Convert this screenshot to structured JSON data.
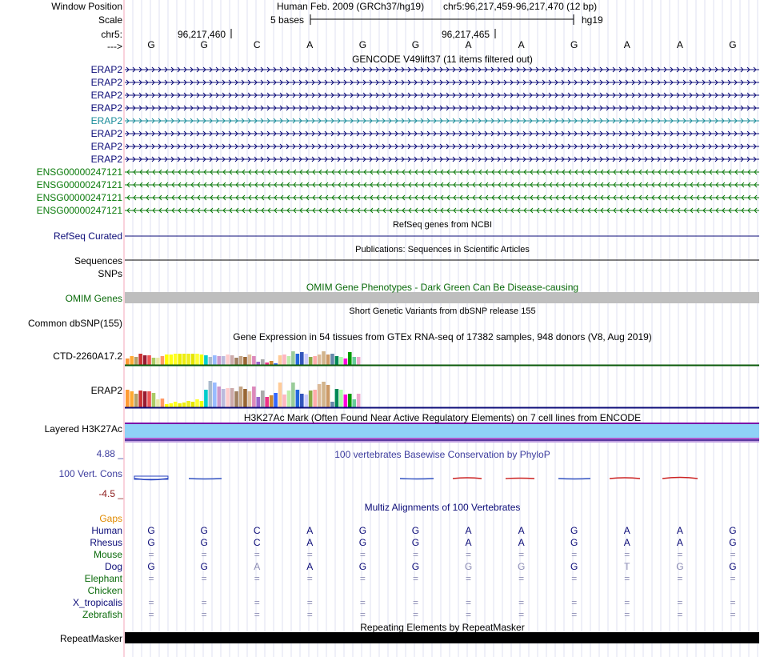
{
  "header": {
    "window_position_label": "Window Position",
    "scale_label": "Scale",
    "chrom_label": "chr5:",
    "strand_label": "--->",
    "assembly_text": "Human Feb. 2009 (GRCh37/hg19)",
    "position_text": "chr5:96,217,459-96,217,470 (12 bp)",
    "scale_text": "5 bases",
    "scale_db": "hg19",
    "coord_1": "96,217,460",
    "coord_2": "96,217,465",
    "bases": [
      "G",
      "G",
      "C",
      "A",
      "G",
      "G",
      "A",
      "A",
      "G",
      "A",
      "A",
      "G"
    ]
  },
  "gencode": {
    "title": "GENCODE V49lift37 (11 items filtered out)",
    "items": [
      {
        "name": "ERAP2",
        "strand": "+",
        "color": "#0c0c78"
      },
      {
        "name": "ERAP2",
        "strand": "+",
        "color": "#0c0c78"
      },
      {
        "name": "ERAP2",
        "strand": "+",
        "color": "#0c0c78"
      },
      {
        "name": "ERAP2",
        "strand": "+",
        "color": "#0c0c78"
      },
      {
        "name": "ERAP2",
        "strand": "+",
        "color": "#1a8c9a"
      },
      {
        "name": "ERAP2",
        "strand": "+",
        "color": "#0c0c78"
      },
      {
        "name": "ERAP2",
        "strand": "+",
        "color": "#0c0c78"
      },
      {
        "name": "ERAP2",
        "strand": "+",
        "color": "#0c0c78"
      },
      {
        "name": "ENSG00000247121",
        "strand": "-",
        "color": "#0a7a0a"
      },
      {
        "name": "ENSG00000247121",
        "strand": "-",
        "color": "#0a7a0a"
      },
      {
        "name": "ENSG00000247121",
        "strand": "-",
        "color": "#0a7a0a"
      },
      {
        "name": "ENSG00000247121",
        "strand": "-",
        "color": "#0a7a0a"
      }
    ]
  },
  "refseq": {
    "title": "RefSeq genes from NCBI",
    "label": "RefSeq Curated"
  },
  "publications": {
    "title": "Publications: Sequences in Scientific Articles",
    "label": "Sequences"
  },
  "snps": {
    "label": "SNPs"
  },
  "omim": {
    "title": "OMIM Gene Phenotypes - Dark Green Can Be Disease-causing",
    "label": "OMIM Genes"
  },
  "dbsnp": {
    "title": "Short Genetic Variants from dbSNP release 155",
    "label": "Common dbSNP(155)"
  },
  "gtex": {
    "title": "Gene Expression in 54 tissues from GTEx RNA-seq of 17382 samples, 948 donors (V8, Aug 2019)",
    "rows": [
      {
        "label": "CTD-2260A17.2",
        "values": [
          8,
          11,
          10,
          14,
          12,
          12,
          9,
          9,
          11,
          13,
          13,
          14,
          14,
          14,
          14,
          14,
          14,
          13,
          12,
          10,
          12,
          11,
          11,
          13,
          12,
          9,
          11,
          10,
          13,
          11,
          4,
          7,
          3,
          5,
          2,
          12,
          13,
          11,
          17,
          14,
          16,
          14,
          10,
          11,
          13,
          17,
          13,
          14,
          11,
          10,
          8,
          16,
          10,
          10
        ]
      },
      {
        "label": "ERAP2",
        "values": [
          22,
          20,
          17,
          21,
          20,
          20,
          18,
          10,
          11,
          4,
          5,
          7,
          5,
          6,
          8,
          7,
          10,
          8,
          22,
          33,
          31,
          26,
          23,
          24,
          24,
          20,
          26,
          23,
          20,
          26,
          13,
          21,
          13,
          15,
          18,
          31,
          16,
          21,
          31,
          22,
          17,
          16,
          21,
          22,
          29,
          32,
          28,
          7,
          23,
          22,
          16,
          17,
          10,
          17
        ]
      }
    ],
    "colors": [
      "#ff9933",
      "#ffaa33",
      "#b4a16b",
      "#cc3333",
      "#9b1b30",
      "#ee5555",
      "#aacc66",
      "#e8e8a8",
      "#ff9966",
      "#ffff00",
      "#ffff11",
      "#ffff22",
      "#eeee00",
      "#eeee11",
      "#eeee22",
      "#e6e600",
      "#ffff33",
      "#eeff00",
      "#00cccc",
      "#aabbcc",
      "#99bbff",
      "#cc99cc",
      "#bbbbdd",
      "#ffcccc",
      "#ccaaaa",
      "#a08060",
      "#c4a484",
      "#996633",
      "#e0c0a0",
      "#dd88bb",
      "#9966cc",
      "#aaaaaa",
      "#ee3388",
      "#cc8833",
      "#3366ff",
      "#ffcc99",
      "#ffb6c1",
      "#bbeeaa",
      "#99cc99",
      "#2266dd",
      "#3355bb",
      "#ccccff",
      "#88aa44",
      "#ffaaaa",
      "#ddbb99",
      "#d2b48c",
      "#cc9966",
      "#6688aa",
      "#008855",
      "#aaffaa",
      "#ff00dd",
      "#009900",
      "#66cc99",
      "#eeaacc"
    ]
  },
  "h3k27ac": {
    "title": "H3K27Ac Mark (Often Found Near Active Regulatory Elements) on 7 cell lines from ENCODE",
    "label": "Layered H3K27Ac"
  },
  "phylop": {
    "title": "100 vertebrates Basewise Conservation by PhyloP",
    "label": "100 Vert. Cons",
    "max": "4.88 _",
    "min": "-4.5 _"
  },
  "multiz": {
    "title": "Multiz Alignments of 100 Vertebrates",
    "gaps_label": "Gaps",
    "species": [
      {
        "name": "Human",
        "color": "#0c0c78",
        "row": [
          "G",
          "G",
          "C",
          "A",
          "G",
          "G",
          "A",
          "A",
          "G",
          "A",
          "A",
          "G"
        ]
      },
      {
        "name": "Rhesus",
        "color": "#0c0c78",
        "row": [
          "G",
          "G",
          "C",
          "A",
          "G",
          "G",
          "A",
          "A",
          "G",
          "A",
          "A",
          "G"
        ]
      },
      {
        "name": "Mouse",
        "color": "#0a6a0a",
        "row": [
          "=",
          "=",
          "=",
          "=",
          "=",
          "=",
          "=",
          "=",
          "=",
          "=",
          "=",
          "="
        ]
      },
      {
        "name": "Dog",
        "color": "#0c0c78",
        "row": [
          "G",
          "G",
          "A",
          "A",
          "G",
          "G",
          "G",
          "G",
          "G",
          "T",
          "G",
          "G"
        ]
      },
      {
        "name": "Elephant",
        "color": "#0a6a0a",
        "row": [
          "=",
          "=",
          "=",
          "=",
          "=",
          "=",
          "=",
          "=",
          "=",
          "=",
          "=",
          "="
        ]
      },
      {
        "name": "Chicken",
        "color": "#0a6a0a",
        "row": [
          "",
          "",
          "",
          "",
          "",
          "",
          "",
          "",
          "",
          "",
          "",
          ""
        ]
      },
      {
        "name": "X_tropicalis",
        "color": "#0c0c78",
        "row": [
          "=",
          "=",
          "=",
          "=",
          "=",
          "=",
          "=",
          "=",
          "=",
          "=",
          "=",
          "="
        ]
      },
      {
        "name": "Zebrafish",
        "color": "#0a6a0a",
        "row": [
          "=",
          "=",
          "=",
          "=",
          "=",
          "=",
          "=",
          "=",
          "=",
          "=",
          "=",
          "="
        ]
      }
    ]
  },
  "repeatmasker": {
    "title": "Repeating Elements by RepeatMasker",
    "label": "RepeatMasker"
  }
}
